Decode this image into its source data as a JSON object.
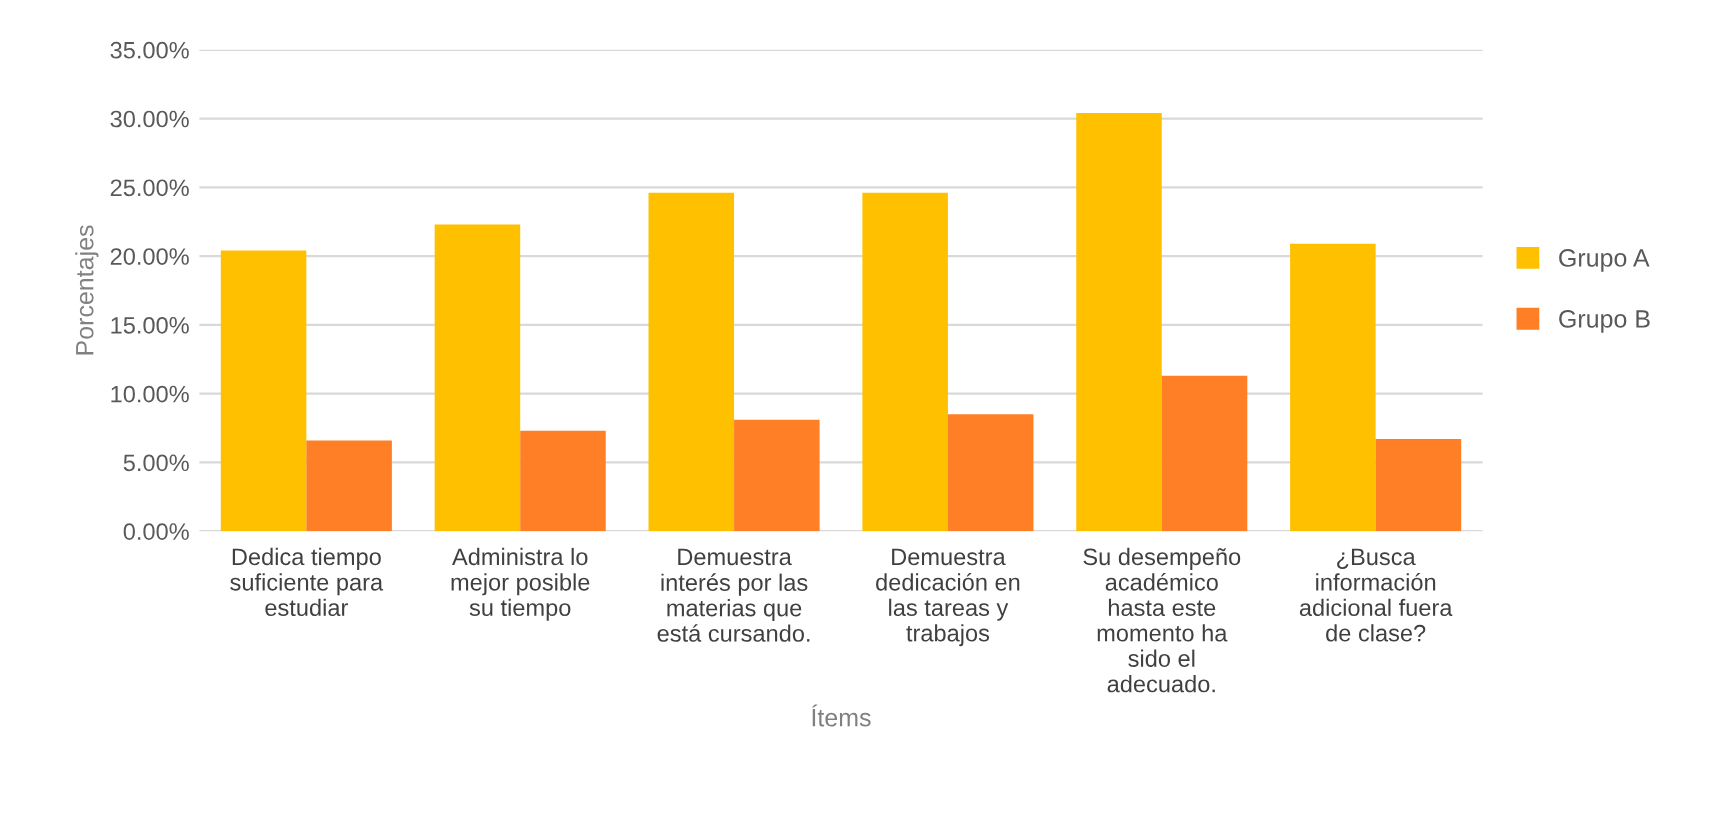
{
  "chart_data": {
    "type": "bar",
    "xlabel": "Ítems",
    "ylabel": "Porcentajes",
    "categories": [
      "Dedica tiempo\nsuficiente para\nestudiar",
      "Administra lo\nmejor posible\nsu tiempo",
      "Demuestra\ninterés por las\nmaterias que\nestá cursando.",
      "Demuestra\ndedicación en\nlas tareas y\ntrabajos",
      "Su desempeño\nacadémico\nhasta este\nmomento ha\nsido el\nadecuado.",
      "¿Busca\ninformación\nadicional fuera\nde clase?"
    ],
    "series": [
      {
        "name": "Grupo A",
        "color": "#ffc000",
        "values": [
          20.4,
          22.3,
          24.6,
          24.6,
          30.4,
          20.9
        ]
      },
      {
        "name": "Grupo B",
        "color": "#ff7f27",
        "values": [
          6.6,
          7.3,
          8.1,
          8.5,
          11.3,
          6.7
        ]
      }
    ],
    "ylim": [
      0,
      35
    ],
    "yticks": [
      {
        "value": 0,
        "label": "0.00%"
      },
      {
        "value": 5,
        "label": "5.00%"
      },
      {
        "value": 10,
        "label": "10.00%"
      },
      {
        "value": 15,
        "label": "15.00%"
      },
      {
        "value": 20,
        "label": "20.00%"
      },
      {
        "value": 25,
        "label": "25.00%"
      },
      {
        "value": 30,
        "label": "30.00%"
      },
      {
        "value": 35,
        "label": "35.00%"
      }
    ],
    "grid": "y",
    "legend": "right"
  }
}
